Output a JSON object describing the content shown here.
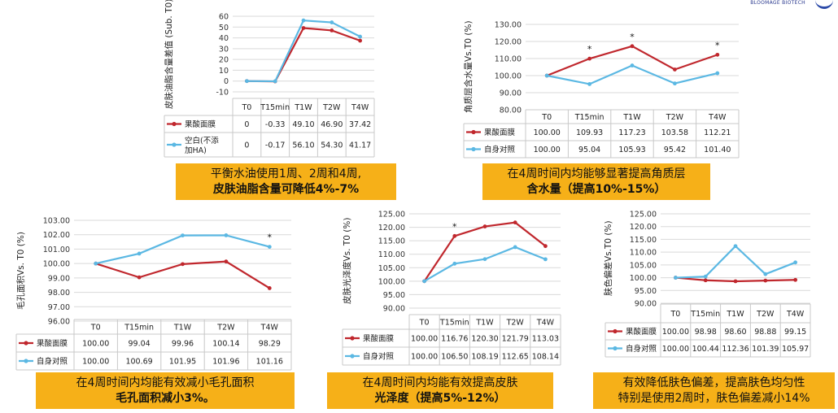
{
  "logo_text": "BLOOMAGE BIOTECH",
  "colors": {
    "series1": "#c0272d",
    "series2": "#5bb8e3",
    "caption_bg": "#f6b018"
  },
  "chart_data": [
    {
      "type": "line",
      "ylabel": "皮肤油脂含量差值 (Sub. T0)",
      "categories": [
        "T0",
        "T15min",
        "T1W",
        "T2W",
        "T4W"
      ],
      "ylim": [
        -10,
        60
      ],
      "yticks": [
        -10,
        0,
        10,
        20,
        30,
        40,
        50,
        60
      ],
      "ytick_labels": [
        "-10",
        "0",
        "10",
        "20",
        "30",
        "40",
        "50",
        "60"
      ],
      "grid": true,
      "series": [
        {
          "name": "果酸面膜",
          "values": [
            0,
            -0.33,
            49.1,
            46.9,
            37.42
          ],
          "labels": [
            "0",
            "-0.33",
            "49.10",
            "46.90",
            "37.42"
          ]
        },
        {
          "name": "空白(不添加HA)",
          "values": [
            0,
            -0.17,
            56.1,
            54.3,
            41.17
          ],
          "labels": [
            "0",
            "-0.17",
            "56.10",
            "54.30",
            "41.17"
          ]
        }
      ],
      "caption": [
        "平衡水油使用1周、2周和4周,",
        "皮肤油脂含量可降低4%-7%"
      ]
    },
    {
      "type": "line",
      "ylabel": "角质层含水量Vs.T0 (%)",
      "categories": [
        "T0",
        "T15min",
        "T1W",
        "T2W",
        "T4W"
      ],
      "ylim": [
        80,
        130
      ],
      "yticks": [
        80,
        90,
        100,
        110,
        120,
        130
      ],
      "ytick_labels": [
        "80.00",
        "90.00",
        "100.00",
        "110.00",
        "120.00",
        "130.00"
      ],
      "grid": true,
      "annotations": [
        "*",
        "*",
        "*"
      ],
      "series": [
        {
          "name": "果酸面膜",
          "values": [
            100.0,
            109.93,
            117.23,
            103.58,
            112.21
          ],
          "labels": [
            "100.00",
            "109.93",
            "117.23",
            "103.58",
            "112.21"
          ]
        },
        {
          "name": "自身对照",
          "values": [
            100.0,
            95.04,
            105.93,
            95.42,
            101.4
          ],
          "labels": [
            "100.00",
            "95.04",
            "105.93",
            "95.42",
            "101.40"
          ]
        }
      ],
      "caption": [
        "在4周时间内均能够显著提高角质层",
        "含水量（提高10%-15%）"
      ]
    },
    {
      "type": "line",
      "ylabel": "毛孔面积Vs. T0 (%)",
      "categories": [
        "T0",
        "T15min",
        "T1W",
        "T2W",
        "T4W"
      ],
      "ylim": [
        96,
        103
      ],
      "yticks": [
        96,
        97,
        98,
        99,
        100,
        101,
        102,
        103
      ],
      "ytick_labels": [
        "96.00",
        "97.00",
        "98.00",
        "99.00",
        "100.00",
        "101.00",
        "102.00",
        "103.00"
      ],
      "grid": true,
      "annotations": [
        "*"
      ],
      "series": [
        {
          "name": "果酸面膜",
          "values": [
            100.0,
            99.04,
            99.96,
            100.14,
            98.29
          ],
          "labels": [
            "100.00",
            "99.04",
            "99.96",
            "100.14",
            "98.29"
          ]
        },
        {
          "name": "自身对照",
          "values": [
            100.0,
            100.69,
            101.95,
            101.96,
            101.16
          ],
          "labels": [
            "100.00",
            "100.69",
            "101.95",
            "101.96",
            "101.16"
          ]
        }
      ],
      "caption": [
        "在4周时间内均能有效减小毛孔面积",
        "毛孔面积减小3%。"
      ]
    },
    {
      "type": "line",
      "ylabel": "皮肤光泽度Vs. T0 (%)",
      "categories": [
        "T0",
        "T15min",
        "T1W",
        "T2W",
        "T4W"
      ],
      "ylim": [
        90,
        125
      ],
      "yticks": [
        90,
        95,
        100,
        105,
        110,
        115,
        120,
        125
      ],
      "ytick_labels": [
        "90.00",
        "95.00",
        "100.00",
        "105.00",
        "110.00",
        "115.00",
        "120.00",
        "125.00"
      ],
      "grid": true,
      "annotations": [
        "*"
      ],
      "series": [
        {
          "name": "果酸面膜",
          "values": [
            100.0,
            116.76,
            120.3,
            121.79,
            113.03
          ],
          "labels": [
            "100.00",
            "116.76",
            "120.30",
            "121.79",
            "113.03"
          ]
        },
        {
          "name": "自身对照",
          "values": [
            100.0,
            106.5,
            108.19,
            112.65,
            108.14
          ],
          "labels": [
            "100.00",
            "106.50",
            "108.19",
            "112.65",
            "108.14"
          ]
        }
      ],
      "caption": [
        "在4周时间内均能有效提高皮肤",
        "光泽度（提高5%-12%）"
      ]
    },
    {
      "type": "line",
      "ylabel": "肤色偏差Vs.T0 (%)",
      "categories": [
        "T0",
        "T15min",
        "T1W",
        "T2W",
        "T4W"
      ],
      "ylim": [
        90,
        125
      ],
      "yticks": [
        90,
        95,
        100,
        105,
        110,
        115,
        120,
        125
      ],
      "ytick_labels": [
        "90.00",
        "95.00",
        "100.00",
        "105.00",
        "110.00",
        "115.00",
        "120.00",
        "125.00"
      ],
      "grid": true,
      "series": [
        {
          "name": "果酸面膜",
          "values": [
            100.0,
            98.98,
            98.6,
            98.88,
            99.15
          ],
          "labels": [
            "100.00",
            "98.98",
            "98.60",
            "98.88",
            "99.15"
          ]
        },
        {
          "name": "自身对照",
          "values": [
            100.0,
            100.44,
            112.36,
            101.39,
            105.97
          ],
          "labels": [
            "100.00",
            "100.44",
            "112.36",
            "101.39",
            "105.97"
          ]
        }
      ],
      "caption": [
        "有效降低肤色偏差，提高肤色均匀性",
        "特别是使用2周时，肤色偏差减小14%"
      ]
    }
  ]
}
